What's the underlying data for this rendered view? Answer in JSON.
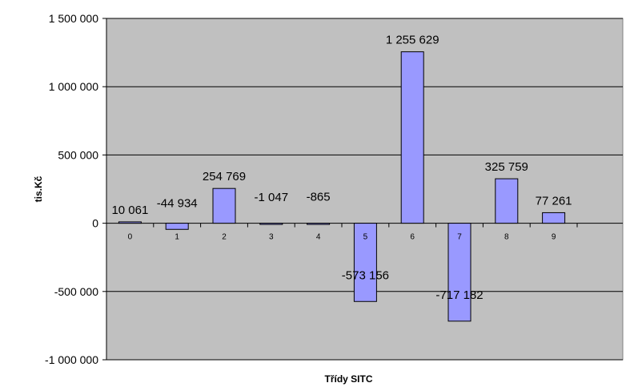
{
  "chart_data": {
    "type": "bar",
    "categories": [
      "0",
      "1",
      "2",
      "3",
      "4",
      "5",
      "6",
      "7",
      "8",
      "9"
    ],
    "values": [
      10061,
      -44934,
      254769,
      -1047,
      -865,
      -573156,
      1255629,
      -717182,
      325759,
      77261
    ],
    "data_labels": [
      "10 061",
      "-44 934",
      "254 769",
      "-1 047",
      "-865",
      "-573 156",
      "1 255 629",
      "-717 182",
      "325 759",
      "77 261"
    ],
    "xlabel": "Třídy SITC",
    "ylabel": "tis.Kč",
    "ylim": [
      -1000000,
      1500000
    ],
    "y_ticks": [
      1500000,
      1000000,
      500000,
      0,
      -500000,
      -1000000
    ],
    "y_tick_labels": [
      "1 500 000",
      "1 000 000",
      "500 000",
      "0",
      "-500 000",
      "-1 000 000"
    ],
    "grid": true,
    "colors": {
      "plot_background": "#c0c0c0",
      "bar_fill": "#9999ff",
      "bar_stroke": "#000000",
      "gridline": "#000000"
    }
  }
}
